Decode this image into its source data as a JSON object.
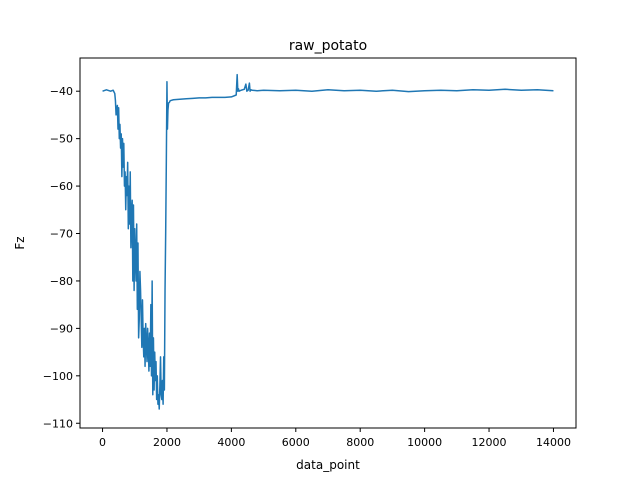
{
  "chart_data": {
    "type": "line",
    "title": "raw_potato",
    "xlabel": "data_point",
    "ylabel": "Fz",
    "xlim": [
      -700,
      14700
    ],
    "ylim": [
      -111,
      -33
    ],
    "xticks": [
      0,
      2000,
      4000,
      6000,
      8000,
      10000,
      12000,
      14000
    ],
    "yticks": [
      -110,
      -100,
      -90,
      -80,
      -70,
      -60,
      -50,
      -40
    ],
    "grid": false,
    "legend": "none",
    "series": [
      {
        "name": "",
        "color": "#1f77b4",
        "x": [
          0,
          120,
          250,
          330,
          380,
          400,
          420,
          440,
          460,
          480,
          500,
          520,
          540,
          560,
          580,
          600,
          620,
          640,
          660,
          680,
          700,
          720,
          740,
          760,
          780,
          800,
          820,
          840,
          860,
          880,
          900,
          920,
          940,
          960,
          980,
          1000,
          1020,
          1040,
          1060,
          1080,
          1100,
          1120,
          1140,
          1160,
          1180,
          1200,
          1220,
          1240,
          1260,
          1280,
          1300,
          1320,
          1340,
          1360,
          1380,
          1400,
          1420,
          1440,
          1460,
          1480,
          1500,
          1520,
          1540,
          1560,
          1580,
          1600,
          1620,
          1640,
          1660,
          1680,
          1700,
          1720,
          1740,
          1760,
          1780,
          1800,
          1820,
          1840,
          1860,
          1880,
          1900,
          1920,
          1940,
          1960,
          1980,
          2000,
          2015,
          2030,
          2050,
          2080,
          2100,
          2200,
          2400,
          2600,
          2800,
          3000,
          3200,
          3400,
          3600,
          3800,
          4000,
          4150,
          4180,
          4200,
          4220,
          4240,
          4300,
          4400,
          4450,
          4480,
          4520,
          4560,
          4580,
          4600,
          4650,
          4800,
          5000,
          5500,
          6000,
          6500,
          7000,
          7500,
          8000,
          8500,
          9000,
          9500,
          10000,
          10500,
          11000,
          11500,
          12000,
          12500,
          13000,
          13500,
          14000
        ],
        "y": [
          -40,
          -39.7,
          -40,
          -39.8,
          -40.5,
          -42,
          -45,
          -44,
          -43,
          -48,
          -43.5,
          -50,
          -47,
          -52,
          -49,
          -58,
          -50,
          -56,
          -51,
          -60,
          -57,
          -65,
          -58,
          -62,
          -55,
          -69,
          -60,
          -68,
          -57,
          -73,
          -66,
          -63,
          -80,
          -64,
          -82,
          -69,
          -75,
          -80,
          -68,
          -86,
          -72,
          -92,
          -88,
          -78,
          -82,
          -88,
          -94,
          -84,
          -92,
          -96,
          -90,
          -98,
          -89,
          -93,
          -97,
          -90,
          -94,
          -99,
          -91,
          -98,
          -85,
          -100,
          -80,
          -104,
          -92,
          -103,
          -95,
          -101,
          -97,
          -105,
          -100,
          -106,
          -104,
          -107,
          -102,
          -96,
          -104,
          -105,
          -101,
          -106,
          -96,
          -103,
          -82,
          -70,
          -55,
          -38,
          -48,
          -44,
          -42.5,
          -42.3,
          -42,
          -41.8,
          -41.7,
          -41.6,
          -41.5,
          -41.4,
          -41.4,
          -41.3,
          -41.3,
          -41.3,
          -41.2,
          -40.8,
          -36.5,
          -40,
          -39.5,
          -40,
          -39.8,
          -39.6,
          -38.5,
          -40,
          -39.8,
          -38.3,
          -40,
          -39.7,
          -39.8,
          -39.9,
          -39.8,
          -39.9,
          -39.8,
          -40,
          -39.7,
          -39.9,
          -39.8,
          -40,
          -39.8,
          -40.1,
          -39.9,
          -39.8,
          -39.9,
          -39.7,
          -39.8,
          -39.6,
          -39.8,
          -39.7,
          -39.9
        ]
      }
    ]
  }
}
